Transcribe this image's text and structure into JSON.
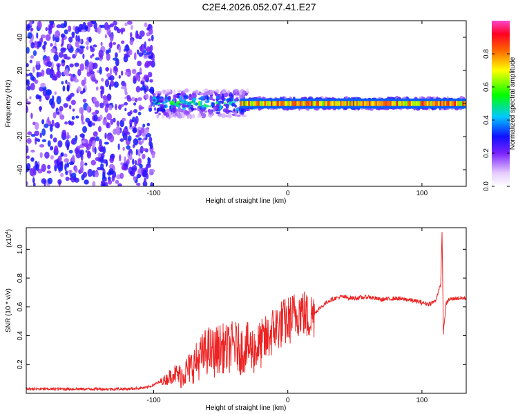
{
  "title": "C2E4.2026.052.07.41.E27",
  "colors": {
    "series": "#ee2222",
    "axis": "#000000",
    "background": "#ffffff"
  },
  "chart_data": [
    {
      "type": "heatmap",
      "xlabel": "Height of straight line (km)",
      "ylabel": "Frequency (Hz)",
      "xlim": [
        -195,
        133
      ],
      "ylim": [
        -50,
        50
      ],
      "x_ticks": [
        -100,
        0,
        100
      ],
      "x_tick_labels": [
        "-100",
        "0",
        "100"
      ],
      "y_ticks": [
        -40,
        -20,
        0,
        20,
        40
      ],
      "y_tick_labels": [
        "-40",
        "-20",
        "0",
        "20",
        "40"
      ],
      "colorbar": {
        "label": "Normalized spectral amplitude",
        "range": [
          0,
          1
        ],
        "ticks": [
          0,
          0.2,
          0.4,
          0.6,
          0.8
        ],
        "tick_labels": [
          "0.0",
          "0.2",
          "0.4",
          "0.6",
          "0.8"
        ]
      },
      "description_regions": [
        {
          "x_range": [
            -195,
            -100
          ],
          "freq_spread": 50,
          "amplitude": 0.25
        },
        {
          "x_range": [
            -100,
            -30
          ],
          "freq_spread": 8,
          "amplitude": 0.45
        },
        {
          "x_range": [
            -30,
            133
          ],
          "freq_spread": 3,
          "amplitude": 0.75
        }
      ]
    },
    {
      "type": "line",
      "xlabel": "Height of straight line (km)",
      "ylabel": "SNR (10 * v/v)",
      "y_multiplier": "(x10",
      "y_multiplier_exp": "4",
      "y_multiplier_close": ")",
      "xlim": [
        -195,
        133
      ],
      "ylim": [
        0,
        1.15
      ],
      "x_ticks": [
        -100,
        0,
        100
      ],
      "x_tick_labels": [
        "-100",
        "0",
        "100"
      ],
      "y_ticks": [
        0.2,
        0.4,
        0.6,
        0.8,
        1.0
      ],
      "y_tick_labels": [
        "0.2",
        "0.4",
        "0.6",
        "0.8",
        "1.0"
      ],
      "series": [
        {
          "name": "SNR",
          "x": [
            -195,
            -150,
            -120,
            -105,
            -100,
            -95,
            -90,
            -85,
            -80,
            -75,
            -70,
            -65,
            -60,
            -55,
            -50,
            -45,
            -40,
            -35,
            -30,
            -25,
            -20,
            -15,
            -10,
            -5,
            0,
            5,
            10,
            15,
            20,
            25,
            30,
            35,
            40,
            50,
            60,
            70,
            80,
            90,
            95,
            100,
            105,
            110,
            112,
            114,
            115,
            116,
            118,
            120,
            125,
            133
          ],
          "y": [
            0.03,
            0.03,
            0.03,
            0.04,
            0.06,
            0.08,
            0.1,
            0.14,
            0.12,
            0.16,
            0.2,
            0.25,
            0.3,
            0.28,
            0.32,
            0.3,
            0.34,
            0.3,
            0.32,
            0.3,
            0.34,
            0.38,
            0.45,
            0.48,
            0.5,
            0.54,
            0.58,
            0.52,
            0.56,
            0.6,
            0.64,
            0.66,
            0.67,
            0.66,
            0.67,
            0.65,
            0.66,
            0.65,
            0.64,
            0.63,
            0.62,
            0.64,
            0.7,
            0.75,
            1.12,
            0.42,
            0.62,
            0.65,
            0.66,
            0.66
          ]
        }
      ]
    }
  ]
}
